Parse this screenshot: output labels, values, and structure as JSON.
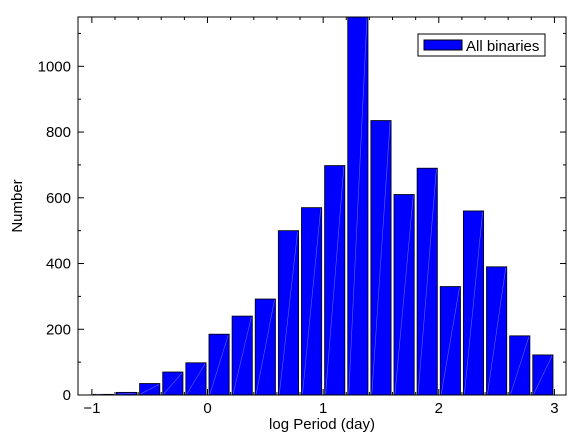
{
  "chart_data": {
    "type": "bar",
    "xlabel": "log Period (day)",
    "ylabel": "Number",
    "xlim": [
      -1.12,
      3.1
    ],
    "ylim": [
      0,
      1150
    ],
    "bar_width": 0.175,
    "x": [
      -0.9,
      -0.7,
      -0.5,
      -0.3,
      -0.1,
      0.1,
      0.3,
      0.5,
      0.7,
      0.9,
      1.1,
      1.3,
      1.5,
      1.7,
      1.9,
      2.1,
      2.3,
      2.5,
      2.7,
      2.9
    ],
    "values": [
      2,
      8,
      35,
      70,
      98,
      185,
      240,
      292,
      500,
      570,
      698,
      1150,
      835,
      610,
      690,
      330,
      560,
      390,
      180,
      122
    ],
    "x_ticks": [
      -1,
      0,
      1,
      2,
      3
    ],
    "x_tick_labels": [
      "−1",
      "0",
      "1",
      "2",
      "3"
    ],
    "y_ticks": [
      0,
      200,
      400,
      600,
      800,
      1000
    ],
    "y_tick_labels": [
      "0",
      "200",
      "400",
      "600",
      "800",
      "1000"
    ],
    "series": [
      {
        "name": "All binaries",
        "color": "#0000ff"
      }
    ],
    "legend_position": "top-right",
    "grid": false
  }
}
